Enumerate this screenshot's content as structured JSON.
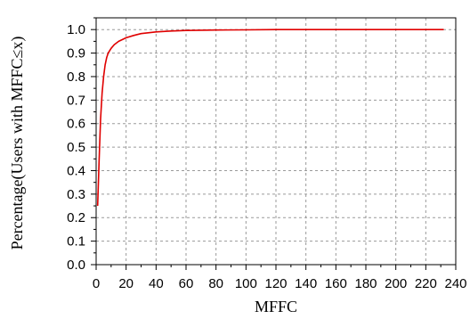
{
  "chart_data": {
    "type": "line",
    "title": "",
    "xlabel": "MFFC",
    "ylabel": "Percentage(Users with MFFC≤x)",
    "xlim": [
      0,
      240
    ],
    "ylim": [
      0.0,
      1.05
    ],
    "x_ticks": [
      0,
      20,
      40,
      60,
      80,
      100,
      120,
      140,
      160,
      180,
      200,
      220,
      240
    ],
    "x_tick_labels": [
      "0",
      "20",
      "40",
      "60",
      "80",
      "100",
      "120",
      "140",
      "160",
      "180",
      "200",
      "220",
      "240"
    ],
    "y_ticks": [
      0.0,
      0.1,
      0.2,
      0.3,
      0.4,
      0.5,
      0.6,
      0.7,
      0.8,
      0.9,
      1.0
    ],
    "y_tick_labels": [
      "0.0",
      "0.1",
      "0.2",
      "0.3",
      "0.4",
      "0.5",
      "0.6",
      "0.7",
      "0.8",
      "0.9",
      "1.0"
    ],
    "grid": true,
    "legend": "none",
    "series": [
      {
        "color": "#e00000",
        "x": [
          1,
          2,
          3,
          4,
          5,
          6,
          7,
          8,
          10,
          12,
          15,
          20,
          25,
          30,
          40,
          50,
          60,
          80,
          100,
          120,
          150,
          200,
          232
        ],
        "y": [
          0.25,
          0.45,
          0.62,
          0.73,
          0.8,
          0.85,
          0.88,
          0.9,
          0.92,
          0.935,
          0.95,
          0.965,
          0.975,
          0.983,
          0.99,
          0.994,
          0.996,
          0.998,
          0.999,
          1.0,
          1.0,
          1.0,
          1.0
        ]
      }
    ]
  }
}
